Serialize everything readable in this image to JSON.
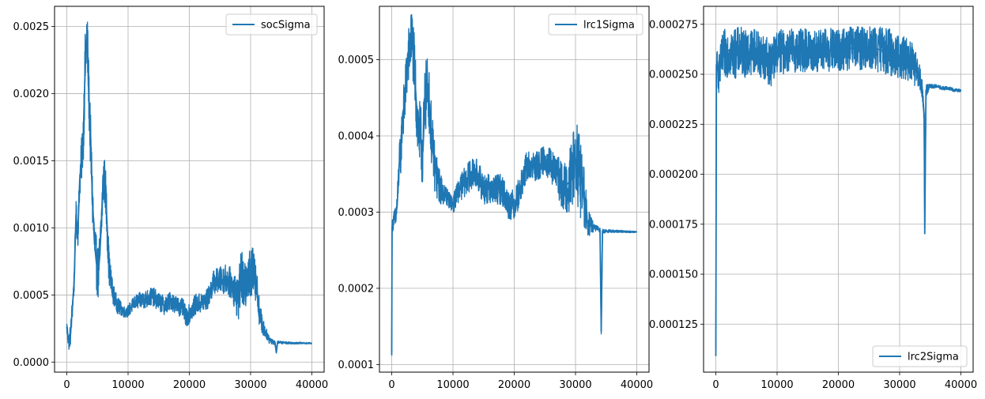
{
  "chart_data": [
    {
      "type": "line",
      "title": "",
      "xlabel": "",
      "ylabel": "",
      "xlim": [
        -2000,
        42000
      ],
      "ylim": [
        -7.5e-05,
        0.00265
      ],
      "xticks": [
        0,
        10000,
        20000,
        30000,
        40000
      ],
      "xtick_labels": [
        "0",
        "10000",
        "20000",
        "30000",
        "40000"
      ],
      "yticks": [
        0.0,
        0.0005,
        0.001,
        0.0015,
        0.002,
        0.0025
      ],
      "ytick_labels": [
        "0.0000",
        "0.0005",
        "0.0010",
        "0.0015",
        "0.0020",
        "0.0025"
      ],
      "grid": true,
      "legend_position": "top-right",
      "color": "#1f77b4",
      "series": [
        {
          "name": "socSigma",
          "anchors": [
            [
              0,
              0.00026
            ],
            [
              300,
              0.00015
            ],
            [
              600,
              0.0002
            ],
            [
              900,
              0.0004
            ],
            [
              1200,
              0.0006
            ],
            [
              1500,
              0.0011
            ],
            [
              1800,
              0.00095
            ],
            [
              2100,
              0.00135
            ],
            [
              2400,
              0.0015
            ],
            [
              2700,
              0.0017
            ],
            [
              3000,
              0.0022
            ],
            [
              3300,
              0.00245
            ],
            [
              3600,
              0.002
            ],
            [
              3900,
              0.0016
            ],
            [
              4200,
              0.0012
            ],
            [
              4500,
              0.0009
            ],
            [
              4800,
              0.00075
            ],
            [
              5100,
              0.00065
            ],
            [
              5400,
              0.0008
            ],
            [
              5700,
              0.0011
            ],
            [
              6000,
              0.0014
            ],
            [
              6300,
              0.0013
            ],
            [
              6600,
              0.001
            ],
            [
              6900,
              0.0007
            ],
            [
              7200,
              0.0006
            ],
            [
              7500,
              0.00052
            ],
            [
              8000,
              0.00045
            ],
            [
              8500,
              0.00041
            ],
            [
              9000,
              0.00039
            ],
            [
              9500,
              0.00037
            ],
            [
              10000,
              0.00038
            ],
            [
              11000,
              0.00044
            ],
            [
              12000,
              0.00046
            ],
            [
              13000,
              0.00047
            ],
            [
              14000,
              0.00049
            ],
            [
              15000,
              0.00045
            ],
            [
              16000,
              0.00042
            ],
            [
              17000,
              0.00046
            ],
            [
              18000,
              0.00042
            ],
            [
              19000,
              0.0004
            ],
            [
              19500,
              0.00033
            ],
            [
              20000,
              0.00036
            ],
            [
              21000,
              0.00043
            ],
            [
              22000,
              0.00044
            ],
            [
              23000,
              0.00047
            ],
            [
              24000,
              0.0006
            ],
            [
              25000,
              0.00061
            ],
            [
              26000,
              0.00062
            ],
            [
              27000,
              0.00058
            ],
            [
              27500,
              0.00052
            ],
            [
              28000,
              0.00048
            ],
            [
              28500,
              0.00065
            ],
            [
              29000,
              0.0005
            ],
            [
              29500,
              0.0007
            ],
            [
              30000,
              0.0006
            ],
            [
              30500,
              0.00075
            ],
            [
              31000,
              0.00055
            ],
            [
              31500,
              0.00035
            ],
            [
              32000,
              0.00026
            ],
            [
              32500,
              0.00022
            ],
            [
              33000,
              0.00017
            ],
            [
              33500,
              0.00016
            ],
            [
              34000,
              0.00014
            ],
            [
              34200,
              7e-05
            ],
            [
              34400,
              0.00015
            ],
            [
              35000,
              0.000145
            ],
            [
              37000,
              0.000142
            ],
            [
              40000,
              0.00014
            ]
          ],
          "noise": [
            [
              0,
              6e-05
            ],
            [
              2000,
              0.00012
            ],
            [
              3000,
              0.00025
            ],
            [
              4500,
              0.0002
            ],
            [
              6500,
              0.00018
            ],
            [
              7500,
              8e-05
            ],
            [
              9500,
              4e-05
            ],
            [
              13000,
              7e-05
            ],
            [
              19000,
              7e-05
            ],
            [
              23000,
              8e-05
            ],
            [
              27000,
              0.00012
            ],
            [
              28500,
              0.0002
            ],
            [
              30500,
              0.0002
            ],
            [
              31500,
              0.0001
            ],
            [
              32500,
              4e-05
            ],
            [
              34500,
              1e-05
            ],
            [
              40000,
              5e-06
            ]
          ]
        }
      ]
    },
    {
      "type": "line",
      "title": "",
      "xlabel": "",
      "ylabel": "",
      "xlim": [
        -2000,
        42000
      ],
      "ylim": [
        9e-05,
        0.00057
      ],
      "xticks": [
        0,
        10000,
        20000,
        30000,
        40000
      ],
      "xtick_labels": [
        "0",
        "10000",
        "20000",
        "30000",
        "40000"
      ],
      "yticks": [
        0.0001,
        0.0002,
        0.0003,
        0.0004,
        0.0005
      ],
      "ytick_labels": [
        "0.0001",
        "0.0002",
        "0.0003",
        "0.0004",
        "0.0005"
      ],
      "grid": true,
      "legend_position": "top-right",
      "color": "#1f77b4",
      "series": [
        {
          "name": "lrc1Sigma",
          "anchors": [
            [
              0,
              0.000112
            ],
            [
              60,
              0.00028
            ],
            [
              300,
              0.00029
            ],
            [
              600,
              0.00029
            ],
            [
              900,
              0.00031
            ],
            [
              1200,
              0.00036
            ],
            [
              1500,
              0.00038
            ],
            [
              1800,
              0.00043
            ],
            [
              2100,
              0.00044
            ],
            [
              2400,
              0.00048
            ],
            [
              2700,
              0.0005
            ],
            [
              3000,
              0.00052
            ],
            [
              3300,
              0.00053
            ],
            [
              3600,
              0.0005
            ],
            [
              3900,
              0.00046
            ],
            [
              4200,
              0.00042
            ],
            [
              4500,
              0.0004
            ],
            [
              4800,
              0.00039
            ],
            [
              5100,
              0.00038
            ],
            [
              5400,
              0.00044
            ],
            [
              5700,
              0.00046
            ],
            [
              6000,
              0.00046
            ],
            [
              6300,
              0.00042
            ],
            [
              6600,
              0.00039
            ],
            [
              7000,
              0.00036
            ],
            [
              7500,
              0.00034
            ],
            [
              8000,
              0.00033
            ],
            [
              9000,
              0.00032
            ],
            [
              10000,
              0.00031
            ],
            [
              11000,
              0.00033
            ],
            [
              12000,
              0.00034
            ],
            [
              13000,
              0.00035
            ],
            [
              14000,
              0.00035
            ],
            [
              15000,
              0.00033
            ],
            [
              16000,
              0.00033
            ],
            [
              17000,
              0.00033
            ],
            [
              18000,
              0.00033
            ],
            [
              19000,
              0.00031
            ],
            [
              20000,
              0.00031
            ],
            [
              21000,
              0.00033
            ],
            [
              22000,
              0.00036
            ],
            [
              23000,
              0.00036
            ],
            [
              24000,
              0.00036
            ],
            [
              25000,
              0.00037
            ],
            [
              26000,
              0.00036
            ],
            [
              27000,
              0.00035
            ],
            [
              28000,
              0.00033
            ],
            [
              29000,
              0.00034
            ],
            [
              30000,
              0.00037
            ],
            [
              31000,
              0.00034
            ],
            [
              31500,
              0.00031
            ],
            [
              32000,
              0.000285
            ],
            [
              32500,
              0.000282
            ],
            [
              33000,
              0.00028
            ],
            [
              33500,
              0.000278
            ],
            [
              34000,
              0.000276
            ],
            [
              34200,
              0.000143
            ],
            [
              34400,
              0.000275
            ],
            [
              35000,
              0.000275
            ],
            [
              40000,
              0.000274
            ]
          ],
          "noise": [
            [
              0,
              8e-06
            ],
            [
              1500,
              3e-05
            ],
            [
              3000,
              4e-05
            ],
            [
              5000,
              5e-05
            ],
            [
              6500,
              4e-05
            ],
            [
              8000,
              2e-05
            ],
            [
              9500,
              1e-05
            ],
            [
              12000,
              2e-05
            ],
            [
              21000,
              2e-05
            ],
            [
              25000,
              2e-05
            ],
            [
              28000,
              3e-05
            ],
            [
              31000,
              6e-05
            ],
            [
              32000,
              2e-05
            ],
            [
              33000,
              5e-06
            ],
            [
              35000,
              2e-06
            ],
            [
              40000,
              1e-06
            ]
          ]
        }
      ]
    },
    {
      "type": "line",
      "title": "",
      "xlabel": "",
      "ylabel": "",
      "xlim": [
        -2000,
        42000
      ],
      "ylim": [
        0.000101,
        0.000284
      ],
      "xticks": [
        0,
        10000,
        20000,
        30000,
        40000
      ],
      "xtick_labels": [
        "0",
        "10000",
        "20000",
        "30000",
        "40000"
      ],
      "yticks": [
        0.000125,
        0.00015,
        0.000175,
        0.0002,
        0.000225,
        0.00025,
        0.000275
      ],
      "ytick_labels": [
        "0.000125",
        "0.000150",
        "0.000175",
        "0.000200",
        "0.000225",
        "0.000250",
        "0.000275"
      ],
      "grid": true,
      "legend_position": "bottom-right",
      "color": "#1f77b4",
      "series": [
        {
          "name": "lrc2Sigma",
          "anchors": [
            [
              0,
              0.000109
            ],
            [
              100,
              0.000255
            ],
            [
              500,
              0.00025
            ],
            [
              1000,
              0.000258
            ],
            [
              2000,
              0.000262
            ],
            [
              3000,
              0.00026
            ],
            [
              4000,
              0.000262
            ],
            [
              5000,
              0.00026
            ],
            [
              6000,
              0.000262
            ],
            [
              7000,
              0.000261
            ],
            [
              8000,
              0.000258
            ],
            [
              9000,
              0.000255
            ],
            [
              10000,
              0.000262
            ],
            [
              11000,
              0.000261
            ],
            [
              12000,
              0.000262
            ],
            [
              13000,
              0.000262
            ],
            [
              14000,
              0.000262
            ],
            [
              15000,
              0.000262
            ],
            [
              16000,
              0.000261
            ],
            [
              17000,
              0.000262
            ],
            [
              18000,
              0.000262
            ],
            [
              19000,
              0.000262
            ],
            [
              20000,
              0.000262
            ],
            [
              21000,
              0.000262
            ],
            [
              22000,
              0.000263
            ],
            [
              23000,
              0.000263
            ],
            [
              24000,
              0.000263
            ],
            [
              25000,
              0.000263
            ],
            [
              26000,
              0.000263
            ],
            [
              27000,
              0.000262
            ],
            [
              28000,
              0.000262
            ],
            [
              29000,
              0.00026
            ],
            [
              30000,
              0.000259
            ],
            [
              31000,
              0.000258
            ],
            [
              32000,
              0.000256
            ],
            [
              33000,
              0.00025
            ],
            [
              33600,
              0.000245
            ],
            [
              34000,
              0.00023
            ],
            [
              34100,
              0.00017
            ],
            [
              34300,
              0.000242
            ],
            [
              35000,
              0.000244
            ],
            [
              36000,
              0.000244
            ],
            [
              37000,
              0.000243
            ],
            [
              38000,
              0.000243
            ],
            [
              39000,
              0.000242
            ],
            [
              40000,
              0.000242
            ]
          ],
          "noise": [
            [
              0,
              8e-06
            ],
            [
              1500,
              1.3e-05
            ],
            [
              5000,
              1.2e-05
            ],
            [
              10000,
              1.1e-05
            ],
            [
              15000,
              1.1e-05
            ],
            [
              20000,
              1.1e-05
            ],
            [
              25000,
              1.1e-05
            ],
            [
              28000,
              1.2e-05
            ],
            [
              30000,
              1.1e-05
            ],
            [
              32000,
              1e-05
            ],
            [
              33000,
              8e-06
            ],
            [
              34000,
              4e-06
            ],
            [
              35000,
              1e-06
            ],
            [
              40000,
              8e-07
            ]
          ]
        }
      ]
    }
  ]
}
